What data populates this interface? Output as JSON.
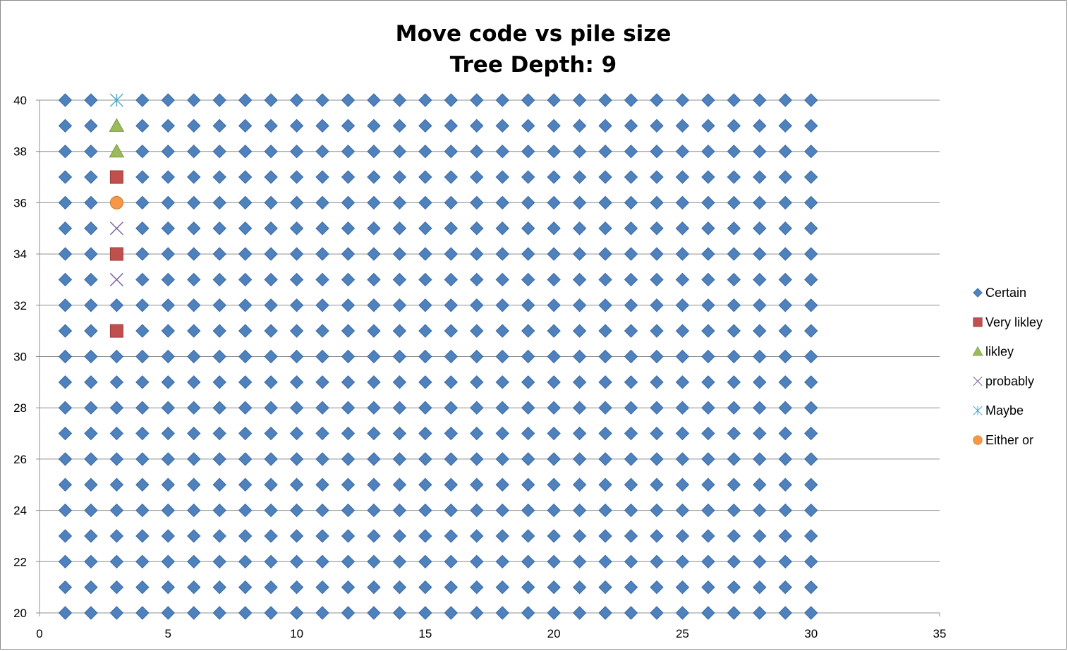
{
  "chart_data": {
    "type": "scatter",
    "title_lines": [
      "Move code vs pile size",
      "Tree Depth: 9"
    ],
    "xlabel": "",
    "ylabel": "",
    "xlim": [
      0,
      35
    ],
    "ylim": [
      20,
      40
    ],
    "x_ticks": [
      0,
      5,
      10,
      15,
      20,
      25,
      30,
      35
    ],
    "y_ticks": [
      20,
      22,
      24,
      26,
      28,
      30,
      32,
      34,
      36,
      38,
      40
    ],
    "grid": "horizontal major gridlines",
    "legend_position": "right",
    "series": [
      {
        "name": "Certain",
        "marker": "diamond",
        "color": "#4f81bd",
        "grid_fill": {
          "x_from": 1,
          "x_to": 30,
          "y_from": 20,
          "y_to": 40,
          "step": 1
        },
        "exclude": [
          [
            3,
            31
          ],
          [
            3,
            33
          ],
          [
            3,
            34
          ],
          [
            3,
            35
          ],
          [
            3,
            36
          ],
          [
            3,
            37
          ],
          [
            3,
            38
          ],
          [
            3,
            39
          ],
          [
            3,
            40
          ]
        ]
      },
      {
        "name": "Very likley",
        "marker": "square",
        "color": "#c0504d",
        "points": [
          [
            3,
            31
          ],
          [
            3,
            34
          ],
          [
            3,
            37
          ]
        ]
      },
      {
        "name": "likley",
        "marker": "triangle",
        "color": "#9bbb59",
        "points": [
          [
            3,
            38
          ],
          [
            3,
            39
          ]
        ]
      },
      {
        "name": "probably",
        "marker": "x",
        "color": "#8064a2",
        "points": [
          [
            3,
            33
          ],
          [
            3,
            35
          ]
        ]
      },
      {
        "name": "Maybe",
        "marker": "star",
        "color": "#4bacc6",
        "points": [
          [
            3,
            40
          ]
        ]
      },
      {
        "name": "Either or",
        "marker": "circle",
        "color": "#f79646",
        "points": [
          [
            3,
            36
          ]
        ]
      }
    ]
  }
}
